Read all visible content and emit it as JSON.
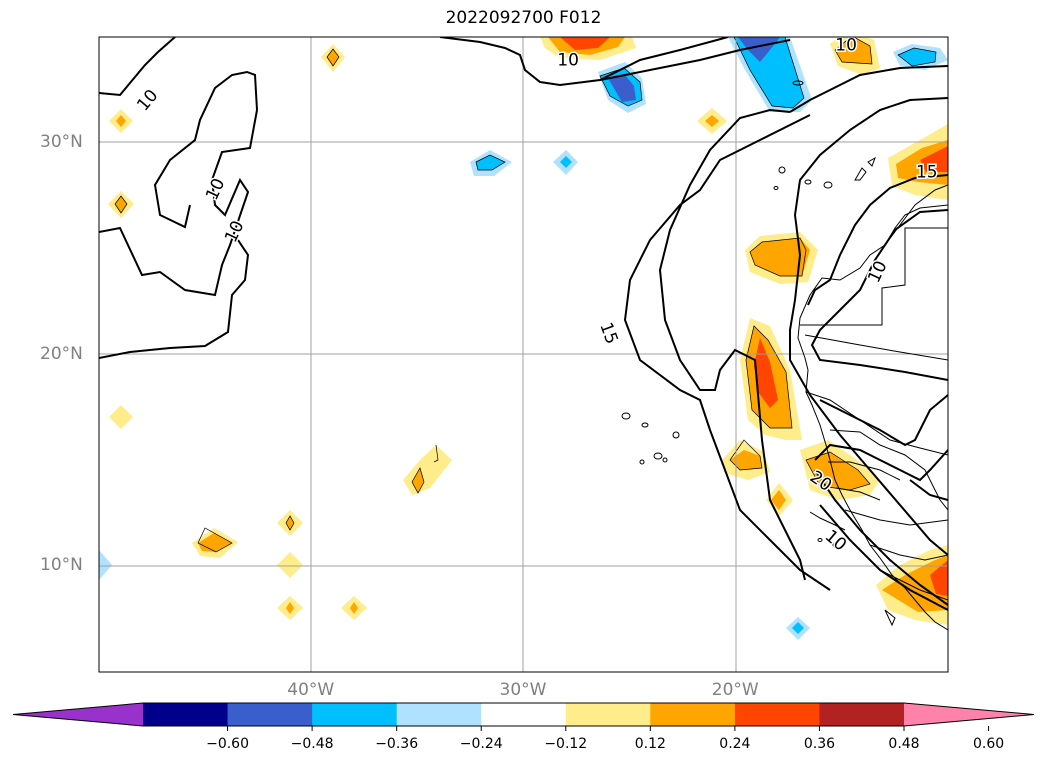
{
  "title": "2022092700 F012",
  "map": {
    "lat_labels": [
      {
        "value": 30,
        "text": "30°N"
      },
      {
        "value": 20,
        "text": "20°N"
      },
      {
        "value": 10,
        "text": "10°N"
      }
    ],
    "lon_labels": [
      {
        "value": -40,
        "text": "40°W"
      },
      {
        "value": -30,
        "text": "30°W"
      },
      {
        "value": -20,
        "text": "20°W"
      }
    ],
    "lon_range": [
      -50,
      -10
    ],
    "lat_range": [
      5,
      35
    ],
    "gridlines": true,
    "contour_labels": [
      {
        "text": "10",
        "lon": -47.7,
        "lat": 32.0,
        "angle": -50
      },
      {
        "text": "10",
        "lon": -44.5,
        "lat": 27.8,
        "angle": -65
      },
      {
        "text": "10",
        "lon": -43.6,
        "lat": 25.8,
        "angle": -65
      },
      {
        "text": "10",
        "lon": -27.9,
        "lat": 33.9,
        "angle": 0
      },
      {
        "text": "10",
        "lon": -14.8,
        "lat": 34.6,
        "angle": 0
      },
      {
        "text": "10",
        "lon": -13.3,
        "lat": 23.9,
        "angle": -65
      },
      {
        "text": "15",
        "lon": -11.0,
        "lat": 28.6,
        "angle": 0
      },
      {
        "text": "15",
        "lon": -26.0,
        "lat": 21.0,
        "angle": 70
      },
      {
        "text": "20",
        "lon": -16.0,
        "lat": 14.0,
        "angle": 35
      },
      {
        "text": "10",
        "lon": -15.3,
        "lat": 11.2,
        "angle": 40
      }
    ]
  },
  "colorbar": {
    "colors": [
      "#9932cc",
      "#00008b",
      "#3a5fcd",
      "#00bfff",
      "#b0e2ff",
      "#ffffff",
      "#ffec8b",
      "#ffa500",
      "#ff4500",
      "#b22222",
      "#ff82ab"
    ],
    "tick_labels": [
      "−0.60",
      "−0.48",
      "−0.36",
      "−0.24",
      "−0.12",
      "0.12",
      "0.24",
      "0.36",
      "0.48",
      "0.60"
    ],
    "extend": "both"
  }
}
